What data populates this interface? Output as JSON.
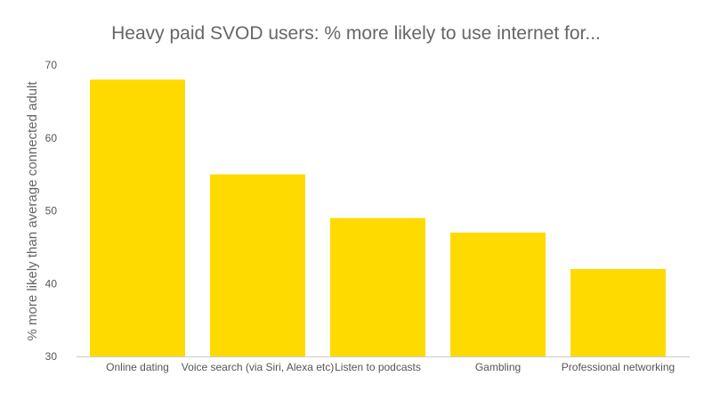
{
  "chart_data": {
    "type": "bar",
    "title": "Heavy paid SVOD users: % more likely to use internet for...",
    "xlabel": "",
    "ylabel": "% more likely than average connected adult",
    "categories": [
      "Online dating",
      "Voice search (via Siri, Alexa etc)",
      "Listen to podcasts",
      "Gambling",
      "Professional networking"
    ],
    "values": [
      68,
      55,
      49,
      47,
      42
    ],
    "ylim": [
      30,
      70
    ],
    "yticks": [
      30,
      40,
      50,
      60,
      70
    ],
    "bar_color": "#FFDA00",
    "grid": false
  }
}
